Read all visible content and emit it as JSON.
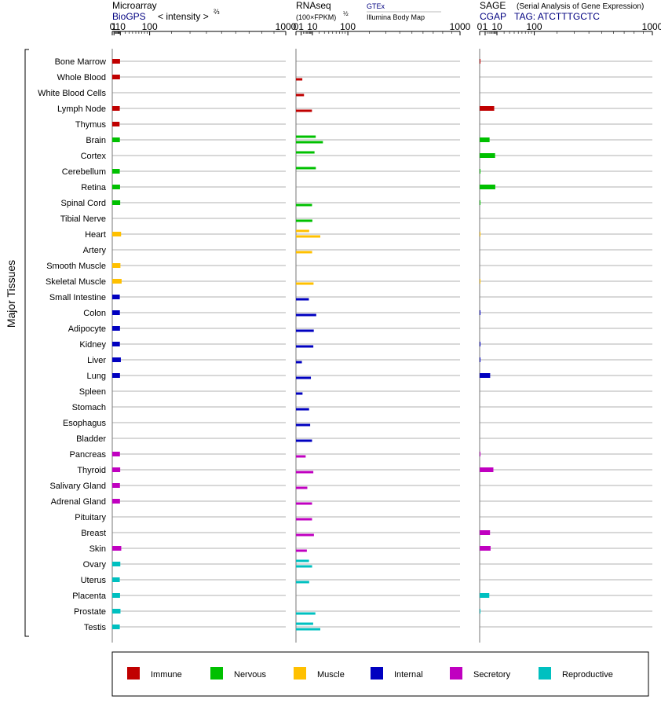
{
  "y_axis_label": "Major Tissues",
  "colors": {
    "Immune": "#c00000",
    "Nervous": "#00c000",
    "Muscle": "#ffc000",
    "Internal": "#0000c0",
    "Secretory": "#c000c0",
    "Reproductive": "#00c0c0"
  },
  "chart_data": [
    {
      "type": "bar",
      "orientation": "horizontal",
      "title": "Microarray",
      "source": "BioGPS",
      "unit": "< intensity >",
      "unit_exponent": "⅔",
      "scale": "power-2/3",
      "xlim": [
        0,
        1000
      ],
      "ticks": [
        "0",
        "1",
        "10",
        "100",
        "1000"
      ],
      "categories": [
        "Bone Marrow",
        "Whole Blood",
        "White Blood Cells",
        "Lymph Node",
        "Thymus",
        "Brain",
        "Cortex",
        "Cerebellum",
        "Retina",
        "Spinal Cord",
        "Tibial Nerve",
        "Heart",
        "Artery",
        "Smooth Muscle",
        "Skeletal Muscle",
        "Small Intestine",
        "Colon",
        "Adipocyte",
        "Kidney",
        "Liver",
        "Lung",
        "Spleen",
        "Stomach",
        "Esophagus",
        "Bladder",
        "Pancreas",
        "Thyroid",
        "Salivary Gland",
        "Adrenal Gland",
        "Pituitary",
        "Breast",
        "Skin",
        "Ovary",
        "Uterus",
        "Placenta",
        "Prostate",
        "Testis"
      ],
      "values": [
        9.5,
        9.4,
        null,
        9.0,
        8.6,
        9.2,
        null,
        9.0,
        9.5,
        9.8,
        null,
        11.5,
        null,
        10.2,
        12.5,
        9.0,
        9.2,
        9.4,
        9.2,
        11.0,
        9.4,
        null,
        null,
        null,
        null,
        9.3,
        9.8,
        9.3,
        9.4,
        null,
        null,
        11.8,
        10.0,
        9.0,
        9.5,
        10.3,
        9.0
      ]
    },
    {
      "type": "bar",
      "orientation": "horizontal",
      "title": "RNAseq",
      "unit": "(100×FPKM)",
      "unit_exponent": "½",
      "scale": "sqrt",
      "sources": [
        "GTEx",
        "Illumina Body Map"
      ],
      "xlim": [
        0,
        1000
      ],
      "ticks": [
        "0",
        "1",
        "10",
        "100",
        "1000"
      ],
      "categories": [
        "Bone Marrow",
        "Whole Blood",
        "White Blood Cells",
        "Lymph Node",
        "Thymus",
        "Brain",
        "Cortex",
        "Cerebellum",
        "Retina",
        "Spinal Cord",
        "Tibial Nerve",
        "Heart",
        "Artery",
        "Smooth Muscle",
        "Skeletal Muscle",
        "Small Intestine",
        "Colon",
        "Adipocyte",
        "Kidney",
        "Liver",
        "Lung",
        "Spleen",
        "Stomach",
        "Esophagus",
        "Bladder",
        "Pancreas",
        "Thyroid",
        "Salivary Gland",
        "Adrenal Gland",
        "Pituitary",
        "Breast",
        "Skin",
        "Ovary",
        "Uterus",
        "Placenta",
        "Prostate",
        "Testis"
      ],
      "series": [
        {
          "values": [
            null,
            null,
            null,
            null,
            null,
            14.5,
            12.8,
            14.7,
            null,
            null,
            null,
            6.5,
            null,
            null,
            null,
            null,
            null,
            null,
            null,
            null,
            null,
            null,
            null,
            null,
            null,
            null,
            null,
            null,
            null,
            null,
            null,
            null,
            6.3,
            null,
            null,
            null,
            11.0
          ]
        },
        {
          "values": [
            null,
            1.5,
            2.4,
            9.5,
            null,
            27.0,
            null,
            null,
            null,
            9.6,
            10.0,
            22.0,
            9.7,
            null,
            11.5,
            6.2,
            15.3,
            11.8,
            11.2,
            1.3,
            8.3,
            1.6,
            6.4,
            7.5,
            9.6,
            3.5,
            11.2,
            4.8,
            9.6,
            9.6,
            12.0,
            4.4,
            9.7,
            6.5,
            null,
            14.0,
            22.0
          ]
        }
      ]
    },
    {
      "type": "bar",
      "orientation": "horizontal",
      "title": "SAGE",
      "subtitle": "(Serial Analysis of Gene Expression)",
      "source": "CGAP",
      "tag": "TAG: ATCTTTGCTC",
      "scale": "sqrt",
      "xlim": [
        0,
        1000
      ],
      "ticks": [
        "0",
        "1",
        "10",
        "100",
        "1000"
      ],
      "categories": [
        "Bone Marrow",
        "Whole Blood",
        "White Blood Cells",
        "Lymph Node",
        "Thymus",
        "Brain",
        "Cortex",
        "Cerebellum",
        "Retina",
        "Spinal Cord",
        "Tibial Nerve",
        "Heart",
        "Artery",
        "Smooth Muscle",
        "Skeletal Muscle",
        "Small Intestine",
        "Colon",
        "Adipocyte",
        "Kidney",
        "Liver",
        "Lung",
        "Spleen",
        "Stomach",
        "Esophagus",
        "Bladder",
        "Pancreas",
        "Thyroid",
        "Salivary Gland",
        "Adrenal Gland",
        "Pituitary",
        "Breast",
        "Skin",
        "Ovary",
        "Uterus",
        "Placenta",
        "Prostate",
        "Testis"
      ],
      "values": [
        0.02,
        null,
        null,
        7.1,
        null,
        3.3,
        8.0,
        0.02,
        8.2,
        0.02,
        null,
        0.01,
        null,
        null,
        0.01,
        null,
        0.02,
        null,
        0.02,
        0.02,
        3.7,
        null,
        null,
        null,
        null,
        0.02,
        6.3,
        null,
        null,
        null,
        3.6,
        4.0,
        null,
        null,
        3.1,
        0.02,
        null
      ]
    }
  ],
  "tissue_groups": [
    "Immune",
    "Immune",
    "Immune",
    "Immune",
    "Immune",
    "Nervous",
    "Nervous",
    "Nervous",
    "Nervous",
    "Nervous",
    "Nervous",
    "Muscle",
    "Muscle",
    "Muscle",
    "Muscle",
    "Internal",
    "Internal",
    "Internal",
    "Internal",
    "Internal",
    "Internal",
    "Internal",
    "Internal",
    "Internal",
    "Internal",
    "Secretory",
    "Secretory",
    "Secretory",
    "Secretory",
    "Secretory",
    "Secretory",
    "Secretory",
    "Reproductive",
    "Reproductive",
    "Reproductive",
    "Reproductive",
    "Reproductive"
  ],
  "legend": [
    {
      "label": "Immune",
      "color": "#c00000"
    },
    {
      "label": "Nervous",
      "color": "#00c000"
    },
    {
      "label": "Muscle",
      "color": "#ffc000"
    },
    {
      "label": "Internal",
      "color": "#0000c0"
    },
    {
      "label": "Secretory",
      "color": "#c000c0"
    },
    {
      "label": "Reproductive",
      "color": "#00c0c0"
    }
  ]
}
